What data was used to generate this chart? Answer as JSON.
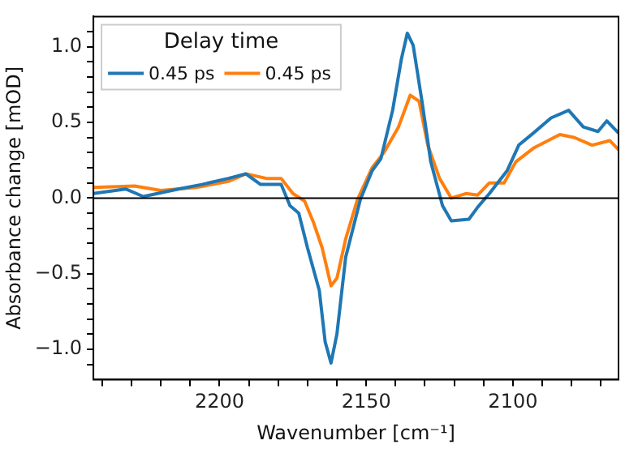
{
  "chart_data": {
    "type": "line",
    "xlabel": "Wavenumber [cm⁻¹]",
    "ylabel": "Absorbance change [mOD]",
    "legend_title": "Delay time",
    "legend": "top left",
    "grid": false,
    "marker": "none",
    "line_style": "solid",
    "xlim": [
      2243,
      2064
    ],
    "ylim": [
      -1.2,
      1.2
    ],
    "xticks": [
      {
        "value": 2240,
        "label": null
      },
      {
        "value": 2230,
        "label": null
      },
      {
        "value": 2220,
        "label": null
      },
      {
        "value": 2210,
        "label": null
      },
      2200,
      {
        "value": 2190,
        "label": null
      },
      {
        "value": 2180,
        "label": null
      },
      {
        "value": 2170,
        "label": null
      },
      {
        "value": 2160,
        "label": null
      },
      2150,
      {
        "value": 2140,
        "label": null
      },
      {
        "value": 2130,
        "label": null
      },
      {
        "value": 2120,
        "label": null
      },
      {
        "value": 2110,
        "label": null
      },
      2100,
      {
        "value": 2090,
        "label": null
      },
      {
        "value": 2080,
        "label": null
      },
      {
        "value": 2070,
        "label": null
      }
    ],
    "yticks": [
      {
        "value": -1.1,
        "label": null
      },
      {
        "value": -1,
        "label": "−1.0"
      },
      {
        "value": -0.9,
        "label": null
      },
      {
        "value": -0.8,
        "label": null
      },
      {
        "value": -0.7,
        "label": null
      },
      {
        "value": -0.6,
        "label": null
      },
      {
        "value": -0.5,
        "label": "−0.5"
      },
      {
        "value": -0.4,
        "label": null
      },
      {
        "value": -0.3,
        "label": null
      },
      {
        "value": -0.2,
        "label": null
      },
      {
        "value": -0.1,
        "label": null
      },
      {
        "value": 0,
        "label": "0.0"
      },
      {
        "value": 0.1,
        "label": null
      },
      {
        "value": 0.2,
        "label": null
      },
      {
        "value": 0.3,
        "label": null
      },
      {
        "value": 0.4,
        "label": null
      },
      {
        "value": 0.5,
        "label": "0.5"
      },
      {
        "value": 0.6,
        "label": null
      },
      {
        "value": 0.7,
        "label": null
      },
      {
        "value": 0.8,
        "label": null
      },
      {
        "value": 0.9,
        "label": null
      },
      {
        "value": 1,
        "label": "1.0"
      },
      {
        "value": 1.1,
        "label": null
      }
    ],
    "ref_lines": [
      {
        "axis": "y",
        "value": 0,
        "color": "#000000"
      }
    ],
    "series": [
      {
        "name": "0.45 ps",
        "color": "#1f77b4",
        "x": [
          2243,
          2232,
          2226,
          2214,
          2206,
          2197,
          2191,
          2186,
          2179,
          2176,
          2173,
          2170,
          2166,
          2164,
          2162,
          2160,
          2157,
          2152,
          2148,
          2145,
          2141,
          2138,
          2136,
          2134,
          2131,
          2128,
          2124,
          2121,
          2115,
          2112,
          2108,
          2102,
          2098,
          2093,
          2087,
          2081,
          2076,
          2071,
          2068,
          2064
        ],
        "values": [
          0.03,
          0.06,
          0.01,
          0.06,
          0.09,
          0.13,
          0.16,
          0.09,
          0.09,
          -0.05,
          -0.1,
          -0.33,
          -0.61,
          -0.95,
          -1.09,
          -0.9,
          -0.39,
          -0.01,
          0.18,
          0.26,
          0.58,
          0.92,
          1.09,
          1.01,
          0.64,
          0.24,
          -0.05,
          -0.15,
          -0.14,
          -0.06,
          0.03,
          0.18,
          0.35,
          0.43,
          0.53,
          0.58,
          0.47,
          0.44,
          0.51,
          0.43
        ]
      },
      {
        "name": "0.45 ps",
        "color": "#ff7f0e",
        "x": [
          2243,
          2229,
          2220,
          2208,
          2197,
          2191,
          2184,
          2179,
          2175,
          2171,
          2168,
          2165,
          2162,
          2160,
          2157,
          2153,
          2148,
          2144,
          2139,
          2135,
          2132,
          2129,
          2125,
          2121,
          2116,
          2112,
          2108,
          2103,
          2099,
          2093,
          2084,
          2079,
          2073,
          2067,
          2064
        ],
        "values": [
          0.07,
          0.08,
          0.05,
          0.07,
          0.11,
          0.16,
          0.13,
          0.13,
          0.03,
          -0.02,
          -0.16,
          -0.33,
          -0.58,
          -0.53,
          -0.27,
          -0.01,
          0.2,
          0.3,
          0.47,
          0.68,
          0.64,
          0.35,
          0.13,
          0.0,
          0.03,
          0.02,
          0.1,
          0.1,
          0.24,
          0.33,
          0.42,
          0.4,
          0.35,
          0.38,
          0.32
        ]
      }
    ]
  }
}
